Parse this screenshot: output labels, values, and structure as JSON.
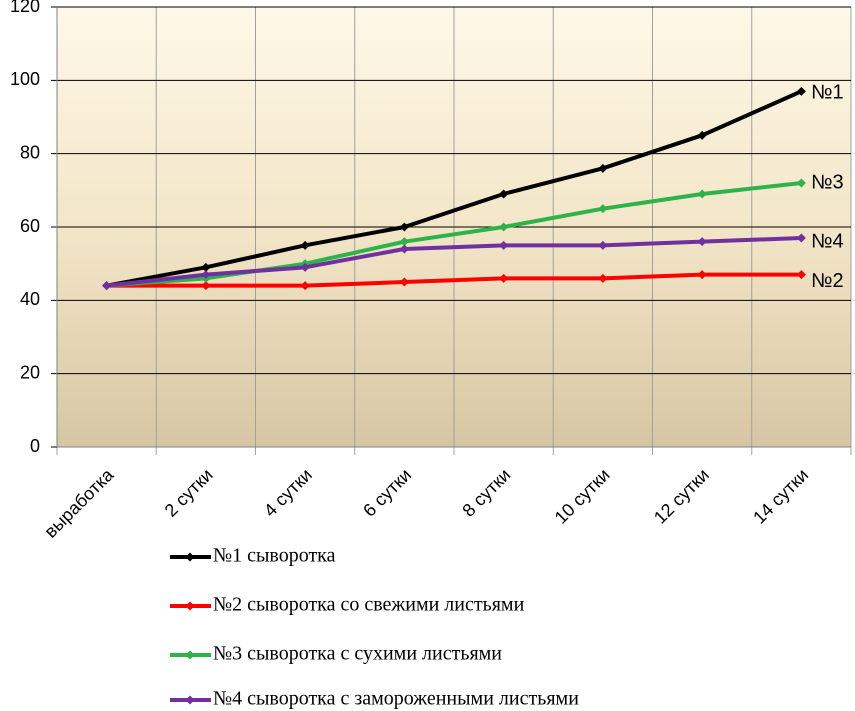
{
  "chart_data": {
    "type": "line",
    "categories": [
      "выработка",
      "2 сутки",
      "4 сутки",
      "6 сутки",
      "8 сутки",
      "10 сутки",
      "12 сутки",
      "14 сутки"
    ],
    "ylim": [
      0,
      120
    ],
    "yticks": [
      0,
      20,
      40,
      60,
      80,
      100,
      120
    ],
    "grid": true,
    "series": [
      {
        "name": "№1 сыворотка",
        "end_label": "№1",
        "color": "#000000",
        "values": [
          44,
          49,
          55,
          60,
          69,
          76,
          85,
          97
        ]
      },
      {
        "name": "№2 сыворотка со свежими листьями",
        "end_label": "№2",
        "color": "#ff0000",
        "values": [
          44,
          44,
          44,
          45,
          46,
          46,
          47,
          47
        ]
      },
      {
        "name": "№3 сыворотка с сухими листьями",
        "end_label": "№3",
        "color": "#2db34a",
        "values": [
          44,
          46,
          50,
          56,
          60,
          65,
          69,
          72
        ]
      },
      {
        "name": "№4 сыворотка с замороженными листьями",
        "end_label": "№4",
        "color": "#7030a0",
        "values": [
          44,
          47,
          49,
          54,
          55,
          55,
          56,
          57
        ]
      }
    ]
  }
}
